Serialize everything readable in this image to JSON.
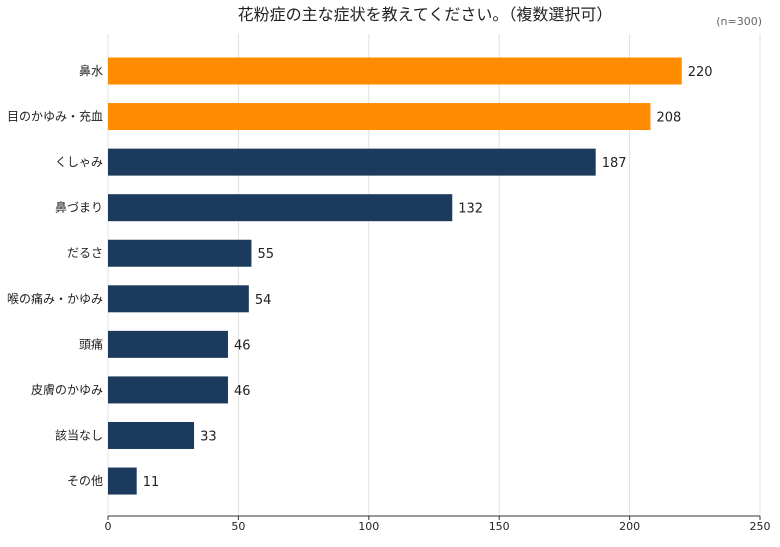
{
  "chart_data": {
    "type": "bar",
    "orientation": "horizontal",
    "title": "花粉症の主な症状を教えてください。（複数選択可）",
    "note": "(n=300)",
    "categories": [
      "鼻水",
      "目のかゆみ・充血",
      "くしゃみ",
      "鼻づまり",
      "だるさ",
      "喉の痛み・かゆみ",
      "頭痛",
      "皮膚のかゆみ",
      "該当なし",
      "その他"
    ],
    "values": [
      220,
      208,
      187,
      132,
      55,
      54,
      46,
      46,
      33,
      11
    ],
    "highlight_count": 2,
    "xlim": [
      0,
      250
    ],
    "xticks": [
      0,
      50,
      100,
      150,
      200,
      250
    ],
    "grid": true,
    "colors": {
      "highlight": "#FF8C00",
      "default": "#1B3A5C",
      "grid": "#E0E0E0",
      "axis": "#333333"
    }
  }
}
